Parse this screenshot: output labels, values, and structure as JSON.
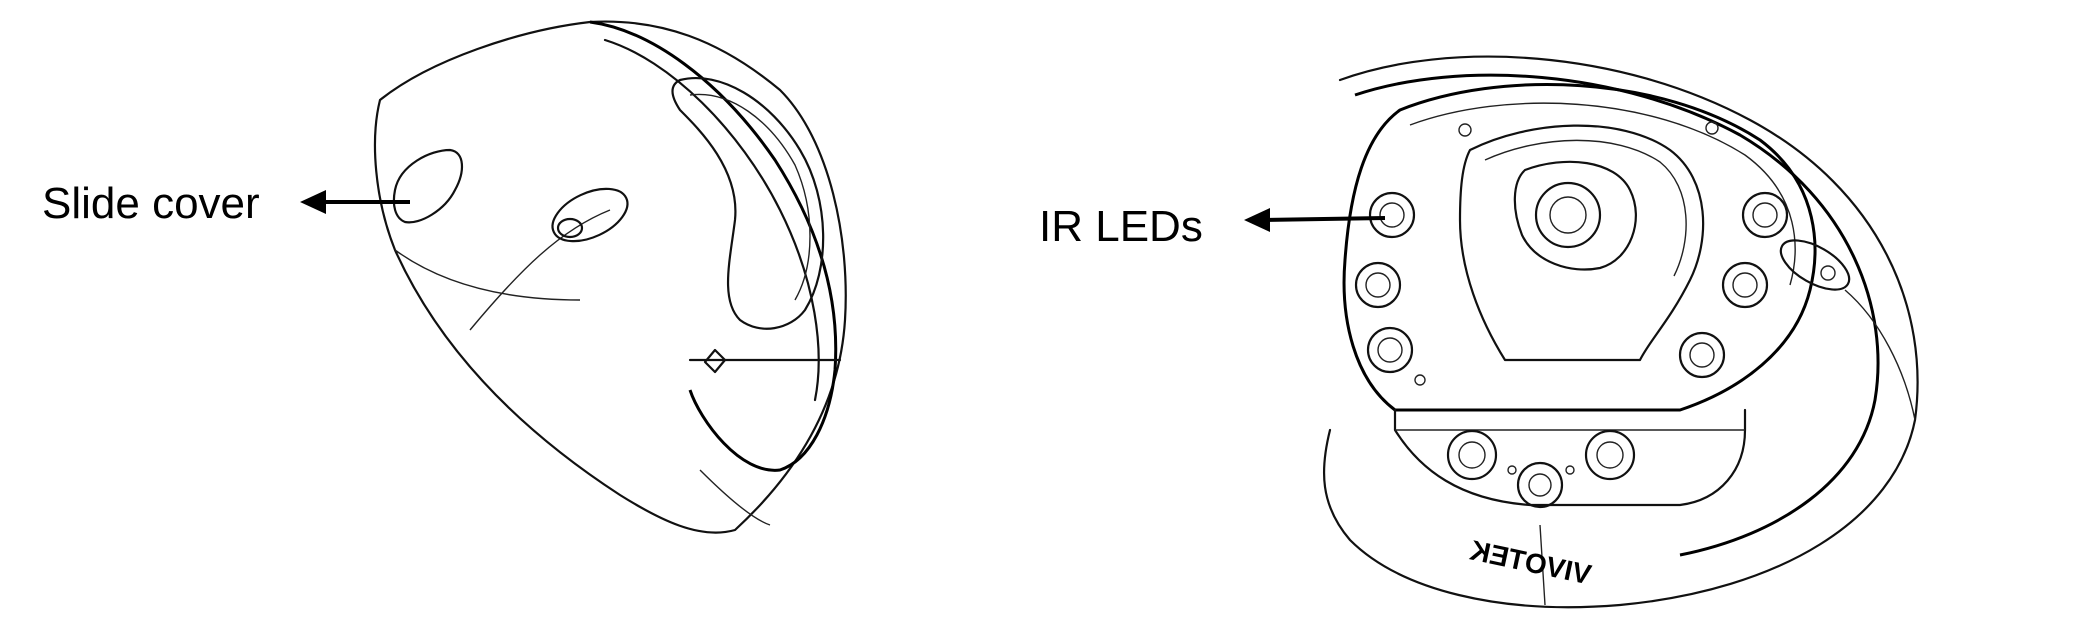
{
  "labels": {
    "slide_cover": "Slide cover",
    "ir_leds": "IR LEDs"
  },
  "logo_text": "VIVOTEK",
  "colors": {
    "line": "#111111",
    "background": "#ffffff"
  }
}
